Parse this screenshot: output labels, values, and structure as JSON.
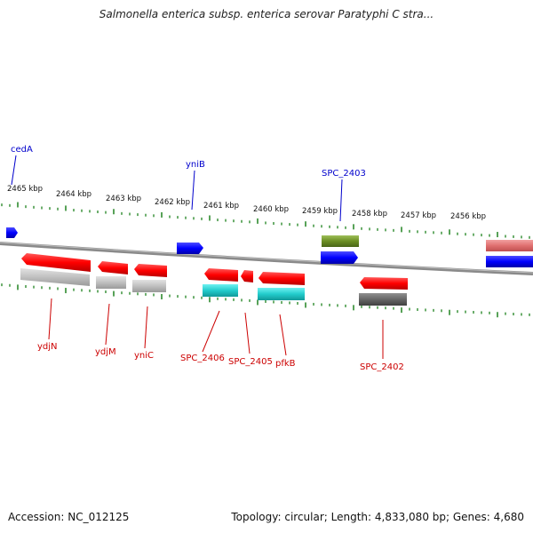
{
  "title": "Salmonella enterica subsp. enterica serovar Paratyphi C stra...",
  "footer": {
    "accession": "Accession: NC_012125",
    "summary": "Topology: circular; Length: 4,833,080 bp; Genes: 4,680"
  },
  "colors": {
    "backbone": "#8a8a8a",
    "tick": "#2e8b2e",
    "label_blue": "#0000cc",
    "label_red": "#cc0000"
  },
  "kbp_labels": [
    "2465 kbp",
    "2464 kbp",
    "2463 kbp",
    "2462 kbp",
    "2461 kbp",
    "2460 kbp",
    "2459 kbp",
    "2458 kbp",
    "2457 kbp",
    "2456 kbp"
  ],
  "genes_top": [
    {
      "label": "cedA",
      "color": "blue"
    },
    {
      "label": "yniB",
      "color": "blue"
    },
    {
      "label": "SPC_2403",
      "color": "blue"
    }
  ],
  "genes_bottom": [
    {
      "label": "ydjN",
      "color": "red"
    },
    {
      "label": "ydjM",
      "color": "red"
    },
    {
      "label": "yniC",
      "color": "red"
    },
    {
      "label": "SPC_2406",
      "color": "red"
    },
    {
      "label": "SPC_2405",
      "color": "red"
    },
    {
      "label": "pfkB",
      "color": "red"
    },
    {
      "label": "SPC_2402",
      "color": "red"
    }
  ]
}
